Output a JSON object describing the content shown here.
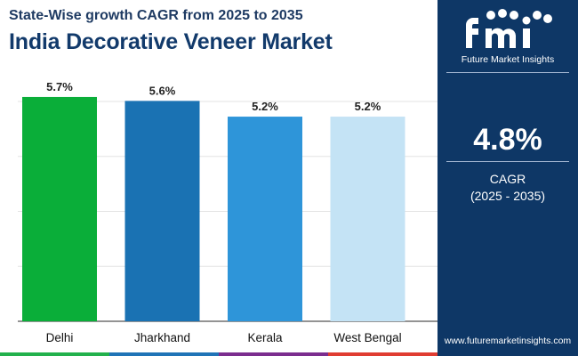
{
  "header": {
    "subtitle": "State-Wise growth CAGR from 2025 to 2035",
    "title": "India Decorative Veneer Market"
  },
  "sidebar": {
    "logo_text": "Future Market Insights",
    "logo_icon": "fmi-logo-icon",
    "stat_value": "4.8%",
    "stat_label": "CAGR",
    "stat_period": "(2025 - 2035)",
    "website": "www.futuremarketinsights.com",
    "colors": {
      "background": "#0e3766",
      "text": "#ffffff"
    }
  },
  "bottom_strip_colors": [
    "#22b14c",
    "#1f74b7",
    "#7b2d8e",
    "#e03c31"
  ],
  "chart_data": {
    "type": "bar",
    "categories": [
      "Delhi",
      "Jharkhand",
      "Kerala",
      "West Bengal"
    ],
    "values": [
      5.7,
      5.6,
      5.2,
      5.2
    ],
    "value_labels": [
      "5.7%",
      "5.6%",
      "5.2%",
      "5.2%"
    ],
    "bar_colors": [
      "#0aae39",
      "#1a72b3",
      "#2e95d9",
      "#c4e3f5"
    ],
    "ylim": [
      0,
      6.4
    ],
    "grid": true,
    "legend": "none",
    "xlabel": "",
    "ylabel": ""
  }
}
